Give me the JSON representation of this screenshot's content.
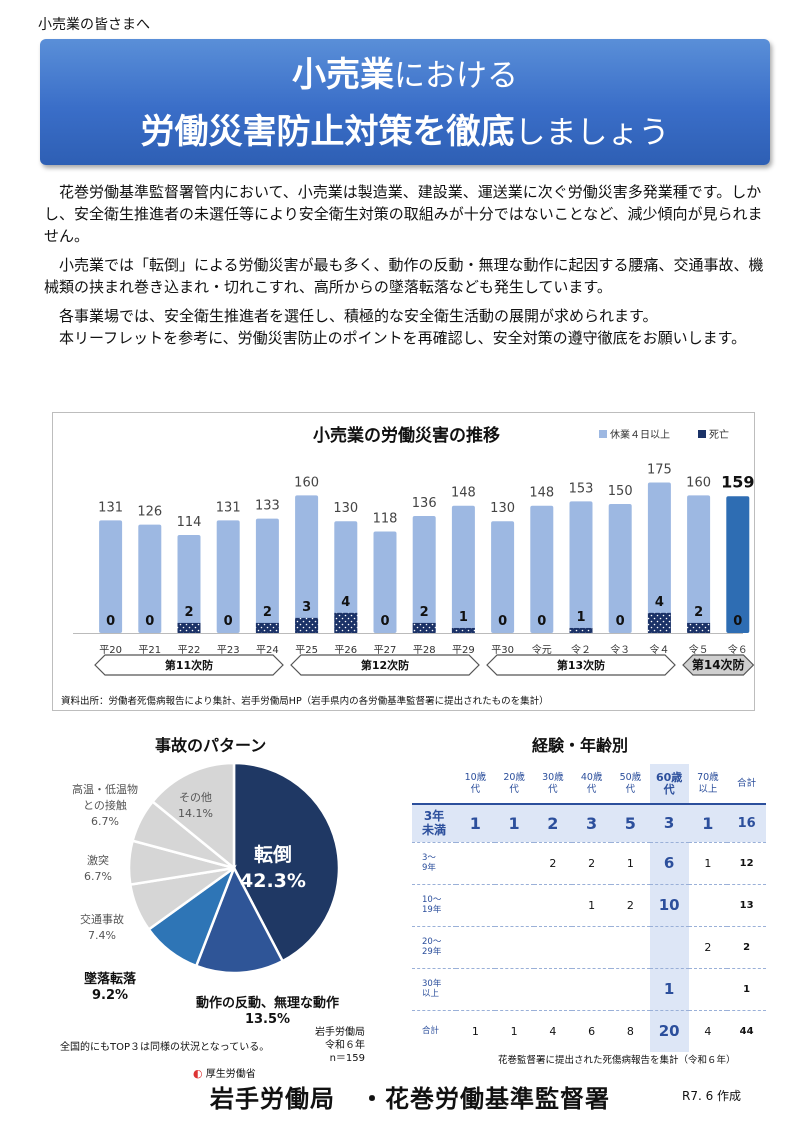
{
  "header": {
    "kicker": "小売業の皆さまへ",
    "title_line1_bold": "小売業",
    "title_line1_rest": "における",
    "title_line2_bold": "労働災害防止対策を徹底",
    "title_line2_rest": "しましょう"
  },
  "intro": {
    "p1": "花巻労働基準監督署管内において、小売業は製造業、建設業、運送業に次ぐ労働災害多発業種です。しかし、安全衛生推進者の未選任等により安全衛生対策の取組みが十分ではないことなど、減少傾向が見られません。",
    "p2": "小売業では「転倒」による労働災害が最も多く、動作の反動・無理な動作に起因する腰痛、交通事故、機械類の挟まれ巻き込まれ・切れこすれ、高所からの墜落転落なども発生しています。",
    "p3": "各事業場では、安全衛生推進者を選任し、積極的な安全衛生活動の展開が求められます。",
    "p4": "本リーフレットを参考に、労働災害防止のポイントを再確認し、安全対策の遵守徹底をお願いします。"
  },
  "chart_data": [
    {
      "type": "bar",
      "title": "小売業の労働災害の推移",
      "categories": [
        "平20",
        "平21",
        "平22",
        "平23",
        "平24",
        "平25",
        "平26",
        "平27",
        "平28",
        "平29",
        "平30",
        "令元",
        "令２",
        "令３",
        "令４",
        "令５",
        "令６"
      ],
      "series": [
        {
          "name": "休業４日以上",
          "values": [
            131,
            126,
            114,
            131,
            133,
            160,
            130,
            118,
            136,
            148,
            130,
            148,
            153,
            150,
            175,
            160,
            159
          ]
        },
        {
          "name": "死亡",
          "values": [
            0,
            0,
            2,
            0,
            2,
            3,
            4,
            0,
            2,
            1,
            0,
            0,
            1,
            0,
            4,
            2,
            0
          ]
        }
      ],
      "periods": [
        "第11次防",
        "第12次防",
        "第13次防",
        "第14次防"
      ],
      "source": "資料出所：労働者死傷病報告により集計、岩手労働局HP（岩手県内の各労働基準監督署に提出されたものを集計）",
      "colors": {
        "injury": "#9db8e2",
        "injury_latest": "#2e6db3",
        "death": "#1b3267"
      }
    },
    {
      "type": "pie",
      "title": "事故のパターン",
      "slices": [
        {
          "label": "転倒",
          "value": 42.3,
          "color": "#1f3864"
        },
        {
          "label": "動作の反動、無理な動作",
          "value": 13.5,
          "color": "#2f5597"
        },
        {
          "label": "墜落転落",
          "value": 9.2,
          "color": "#2e75b6"
        },
        {
          "label": "交通事故",
          "value": 7.4,
          "color": "#d6d6d6"
        },
        {
          "label": "激突",
          "value": 6.7,
          "color": "#d6d6d6"
        },
        {
          "label": "高温・低温物との接触",
          "value": 6.7,
          "color": "#d6d6d6"
        },
        {
          "label": "その他",
          "value": 14.1,
          "color": "#d6d6d6"
        }
      ]
    }
  ],
  "pie": {
    "main_label": "転倒",
    "main_value": "42.3%",
    "l_dousa": "動作の反動、無理な動作",
    "v_dousa": "13.5%",
    "l_tsuiraku": "墜落転落",
    "v_tsuiraku": "9.2%",
    "l_koutsu": "交通事故",
    "v_koutsu": "7.4%",
    "l_gekitotsu": "激突",
    "v_gekitotsu": "6.7%",
    "l_kouon_1": "高温・低温物",
    "l_kouon_2": "との接触",
    "v_kouon": "6.7%",
    "l_sonota": "その他",
    "v_sonota": "14.1%",
    "note": "全国的にもTOP３は同様の状況となっている。",
    "src_1": "岩手労働局",
    "src_2": "令和６年",
    "src_3": "n＝159"
  },
  "table": {
    "title": "経験・年齢別",
    "columns": [
      "10歳代",
      "20歳代",
      "30歳代",
      "40歳代",
      "50歳代",
      "60歳代",
      "70歳以上",
      "合計"
    ],
    "col_lines": [
      [
        "10歳",
        "代"
      ],
      [
        "20歳",
        "代"
      ],
      [
        "30歳",
        "代"
      ],
      [
        "40歳",
        "代"
      ],
      [
        "50歳",
        "代"
      ],
      [
        "60歳",
        "代"
      ],
      [
        "70歳",
        "以上"
      ],
      [
        "合計"
      ]
    ],
    "rows": [
      {
        "label": [
          "3年",
          "未満"
        ],
        "cells": [
          "1",
          "1",
          "2",
          "3",
          "5",
          "3",
          "1",
          "16"
        ]
      },
      {
        "label": [
          "3～",
          "9年"
        ],
        "cells": [
          "",
          "",
          "2",
          "2",
          "1",
          "6",
          "1",
          "12"
        ]
      },
      {
        "label": [
          "10～",
          "19年"
        ],
        "cells": [
          "",
          "",
          "",
          "1",
          "2",
          "10",
          "",
          "13"
        ]
      },
      {
        "label": [
          "20～",
          "29年"
        ],
        "cells": [
          "",
          "",
          "",
          "",
          "",
          "",
          "2",
          "2"
        ]
      },
      {
        "label": [
          "30年",
          "以上"
        ],
        "cells": [
          "",
          "",
          "",
          "",
          "",
          "1",
          "",
          "1"
        ]
      },
      {
        "label": [
          "合計"
        ],
        "cells": [
          "1",
          "1",
          "4",
          "6",
          "8",
          "20",
          "4",
          "44"
        ]
      }
    ],
    "note": "花巻監督署に提出された死傷病報告を集計（令和６年）"
  },
  "footer": {
    "ministry": "厚生労働省",
    "office": "岩手労働局　・花巻労働基準監督署",
    "date": "R7. 6 作成"
  }
}
